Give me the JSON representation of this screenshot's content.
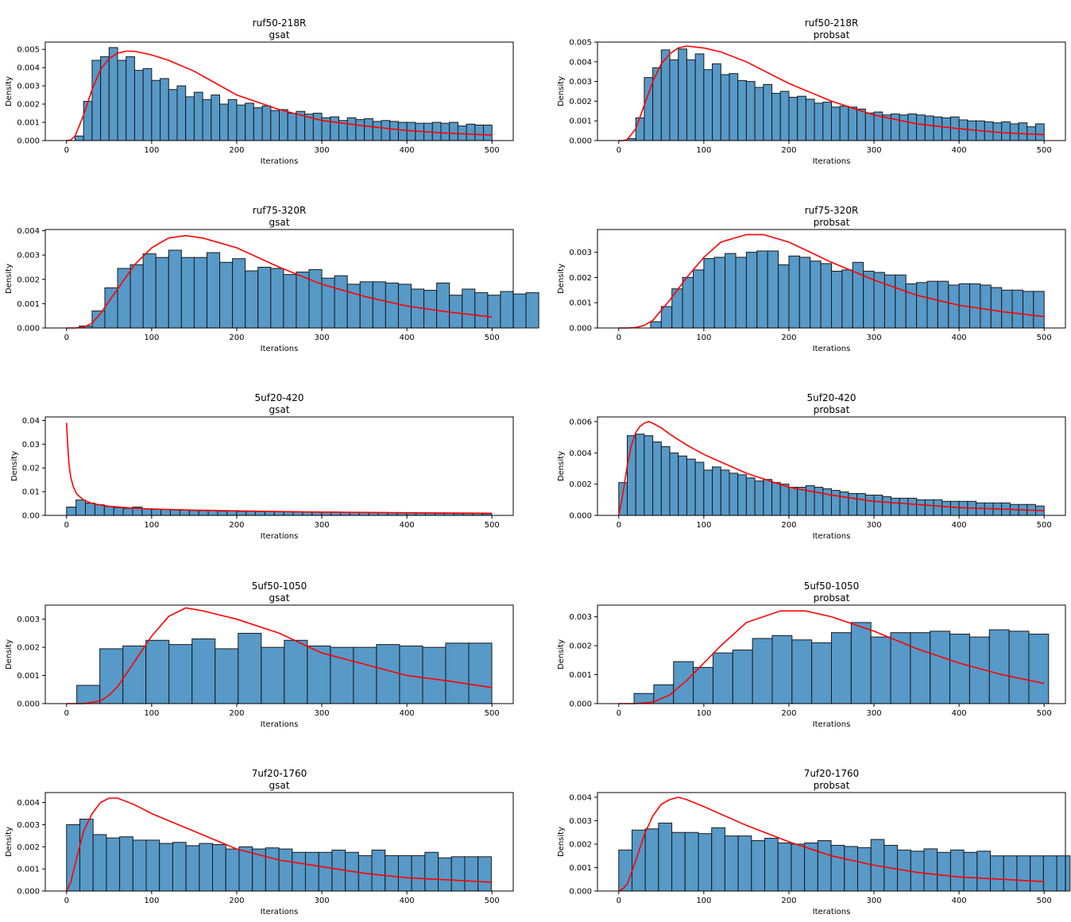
{
  "chart_data": [
    {
      "type": "bar",
      "title": "ruf50-218R",
      "subtitle": "gsat",
      "xlabel": "Iterations",
      "ylabel": "Density",
      "xlim": [
        -25,
        525
      ],
      "ylim": [
        0,
        0.0054
      ],
      "xticks": [
        0,
        100,
        200,
        300,
        400,
        500
      ],
      "yticks": [
        0.0,
        0.001,
        0.002,
        0.003,
        0.004,
        0.005
      ],
      "ytick_labels": [
        "0.000",
        "0.001",
        "0.002",
        "0.003",
        "0.004",
        "0.005"
      ],
      "bin_start": 0,
      "bin_width": 10,
      "values": [
        0,
        0.00025,
        0.00215,
        0.0044,
        0.0046,
        0.0051,
        0.0044,
        0.0046,
        0.00385,
        0.00395,
        0.0033,
        0.0034,
        0.0028,
        0.003,
        0.0024,
        0.00265,
        0.00225,
        0.0025,
        0.002,
        0.00225,
        0.00195,
        0.00205,
        0.0018,
        0.0019,
        0.00165,
        0.0017,
        0.0015,
        0.0016,
        0.00145,
        0.0015,
        0.00125,
        0.0013,
        0.0011,
        0.00125,
        0.00115,
        0.0012,
        0.00105,
        0.0011,
        0.00105,
        0.001,
        0.001,
        0.00095,
        0.00095,
        0.001,
        0.00095,
        0.001,
        0.0008,
        0.0009,
        0.00085,
        0.00085
      ],
      "fit": {
        "x": [
          0,
          5,
          10,
          20,
          30,
          40,
          50,
          60,
          70,
          80,
          100,
          120,
          150,
          200,
          250,
          300,
          350,
          400,
          450,
          500
        ],
        "y": [
          0,
          3e-05,
          0.00025,
          0.0014,
          0.0028,
          0.0039,
          0.0045,
          0.0048,
          0.0049,
          0.0049,
          0.0047,
          0.0044,
          0.0038,
          0.0025,
          0.0017,
          0.0011,
          0.0008,
          0.00055,
          0.0004,
          0.0003
        ]
      }
    },
    {
      "type": "bar",
      "title": "ruf50-218R",
      "subtitle": "probsat",
      "xlabel": "Iterations",
      "ylabel": "Density",
      "xlim": [
        -25,
        525
      ],
      "ylim": [
        0,
        0.005
      ],
      "xticks": [
        0,
        100,
        200,
        300,
        400,
        500
      ],
      "yticks": [
        0.0,
        0.001,
        0.002,
        0.003,
        0.004,
        0.005
      ],
      "ytick_labels": [
        "0.000",
        "0.001",
        "0.002",
        "0.003",
        "0.004",
        "0.005"
      ],
      "bin_start": 0,
      "bin_width": 10,
      "values": [
        0,
        0.0001,
        0.00115,
        0.0032,
        0.0037,
        0.0046,
        0.0041,
        0.00465,
        0.0041,
        0.0044,
        0.0036,
        0.0039,
        0.00335,
        0.0034,
        0.00305,
        0.003,
        0.0027,
        0.00285,
        0.0024,
        0.0025,
        0.0022,
        0.00225,
        0.0021,
        0.0019,
        0.00195,
        0.0017,
        0.00175,
        0.0017,
        0.0016,
        0.0014,
        0.00145,
        0.0013,
        0.00135,
        0.0013,
        0.00135,
        0.0013,
        0.00125,
        0.0012,
        0.00115,
        0.0012,
        0.00105,
        0.001,
        0.001,
        0.00095,
        0.0009,
        0.00095,
        0.00085,
        0.0009,
        0.0007,
        0.00085
      ],
      "fit": {
        "x": [
          0,
          5,
          10,
          20,
          30,
          40,
          50,
          60,
          70,
          80,
          100,
          120,
          150,
          200,
          250,
          300,
          350,
          400,
          450,
          500
        ],
        "y": [
          0,
          0,
          5e-05,
          0.0006,
          0.0018,
          0.003,
          0.0039,
          0.0044,
          0.0047,
          0.0048,
          0.0047,
          0.0045,
          0.004,
          0.0029,
          0.002,
          0.0013,
          0.00085,
          0.0006,
          0.0004,
          0.0003
        ]
      }
    },
    {
      "type": "bar",
      "title": "ruf75-320R",
      "subtitle": "gsat",
      "xlabel": "Iterations",
      "ylabel": "Density",
      "xlim": [
        -25,
        525
      ],
      "ylim": [
        0,
        0.00405
      ],
      "xticks": [
        0,
        100,
        200,
        300,
        400,
        500
      ],
      "yticks": [
        0.0,
        0.001,
        0.002,
        0.003,
        0.004
      ],
      "ytick_labels": [
        "0.000",
        "0.001",
        "0.002",
        "0.003",
        "0.004"
      ],
      "bin_start": 0,
      "bin_width": 15,
      "values": [
        0,
        8e-05,
        0.0007,
        0.00165,
        0.00245,
        0.0026,
        0.00305,
        0.0029,
        0.0032,
        0.0029,
        0.0029,
        0.0031,
        0.0027,
        0.00285,
        0.00235,
        0.0025,
        0.00245,
        0.0022,
        0.0023,
        0.0024,
        0.00205,
        0.00215,
        0.0018,
        0.0019,
        0.0019,
        0.00185,
        0.0018,
        0.0016,
        0.00155,
        0.00185,
        0.00135,
        0.0016,
        0.00145,
        0.00135,
        0.0015,
        0.0014,
        0.00145
      ],
      "fit": {
        "x": [
          0,
          10,
          20,
          30,
          40,
          50,
          60,
          80,
          100,
          120,
          140,
          160,
          200,
          250,
          300,
          350,
          400,
          450,
          500
        ],
        "y": [
          0,
          0,
          3e-05,
          0.0002,
          0.0006,
          0.0011,
          0.0016,
          0.0026,
          0.0033,
          0.0037,
          0.0038,
          0.0037,
          0.0033,
          0.0025,
          0.0018,
          0.0013,
          0.0009,
          0.00065,
          0.00045
        ]
      }
    },
    {
      "type": "bar",
      "title": "ruf75-320R",
      "subtitle": "probsat",
      "xlabel": "Iterations",
      "ylabel": "Density",
      "xlim": [
        -25,
        525
      ],
      "ylim": [
        0,
        0.0039
      ],
      "xticks": [
        0,
        100,
        200,
        300,
        400,
        500
      ],
      "yticks": [
        0.0,
        0.001,
        0.002,
        0.003
      ],
      "ytick_labels": [
        "0.000",
        "0.001",
        "0.002",
        "0.003"
      ],
      "bin_start": 0,
      "bin_width": 12.5,
      "values": [
        0,
        0,
        0,
        0.00025,
        0.00085,
        0.00155,
        0.002,
        0.0023,
        0.00275,
        0.0028,
        0.00295,
        0.0028,
        0.003,
        0.00305,
        0.00305,
        0.0025,
        0.00285,
        0.0028,
        0.00265,
        0.00255,
        0.00225,
        0.0023,
        0.0026,
        0.00225,
        0.0022,
        0.0021,
        0.0021,
        0.00175,
        0.0018,
        0.00185,
        0.00185,
        0.0017,
        0.00175,
        0.00175,
        0.0017,
        0.0016,
        0.0015,
        0.0015,
        0.00145,
        0.00145
      ],
      "fit": {
        "x": [
          0,
          10,
          20,
          30,
          40,
          50,
          60,
          80,
          100,
          120,
          150,
          170,
          200,
          250,
          300,
          350,
          400,
          450,
          500
        ],
        "y": [
          0,
          0,
          2e-05,
          0.0001,
          0.0003,
          0.0007,
          0.0011,
          0.002,
          0.0028,
          0.0034,
          0.0037,
          0.0037,
          0.0034,
          0.0026,
          0.0019,
          0.0013,
          0.0009,
          0.00065,
          0.00045
        ]
      }
    },
    {
      "type": "bar",
      "title": "5uf20-420",
      "subtitle": "gsat",
      "xlabel": "Iterations",
      "ylabel": "Density",
      "xlim": [
        -25,
        525
      ],
      "ylim": [
        0,
        0.0415
      ],
      "xticks": [
        0,
        100,
        200,
        300,
        400,
        500
      ],
      "yticks": [
        0.0,
        0.01,
        0.02,
        0.03,
        0.04
      ],
      "ytick_labels": [
        "0.00",
        "0.01",
        "0.02",
        "0.03",
        "0.04"
      ],
      "bin_start": 0,
      "bin_width": 11.1,
      "values": [
        0.0035,
        0.0065,
        0.0052,
        0.0045,
        0.0038,
        0.0033,
        0.003,
        0.0035,
        0.0028,
        0.0026,
        0.0025,
        0.0023,
        0.0022,
        0.0021,
        0.002,
        0.0022,
        0.0018,
        0.002,
        0.0017,
        0.0018,
        0.0016,
        0.0017,
        0.0016,
        0.0016,
        0.0015,
        0.0015,
        0.0014,
        0.0014,
        0.0014,
        0.0013,
        0.0013,
        0.0012,
        0.0012,
        0.0012,
        0.0011,
        0.0011,
        0.001,
        0.001,
        0.001,
        0.0009,
        0.0009,
        0.0008,
        0.0008,
        0.0008,
        0.0007
      ],
      "fit": {
        "x": [
          0,
          1,
          2,
          3,
          5,
          8,
          12,
          20,
          30,
          50,
          80,
          100,
          150,
          200,
          250,
          300,
          400,
          500
        ],
        "y": [
          0.039,
          0.032,
          0.026,
          0.021,
          0.016,
          0.012,
          0.009,
          0.0065,
          0.005,
          0.0038,
          0.003,
          0.0027,
          0.0022,
          0.0019,
          0.0016,
          0.0014,
          0.0011,
          0.0009
        ]
      }
    },
    {
      "type": "bar",
      "title": "5uf20-420",
      "subtitle": "probsat",
      "xlabel": "Iterations",
      "ylabel": "Density",
      "xlim": [
        -25,
        525
      ],
      "ylim": [
        0,
        0.0063
      ],
      "xticks": [
        0,
        100,
        200,
        300,
        400,
        500
      ],
      "yticks": [
        0.0,
        0.002,
        0.004,
        0.006
      ],
      "ytick_labels": [
        "0.000",
        "0.002",
        "0.004",
        "0.006"
      ],
      "bin_start": 0,
      "bin_width": 10,
      "values": [
        0.0021,
        0.0051,
        0.0052,
        0.0051,
        0.0047,
        0.0044,
        0.004,
        0.0038,
        0.0036,
        0.0034,
        0.0029,
        0.0031,
        0.0029,
        0.0027,
        0.0026,
        0.0024,
        0.0022,
        0.0023,
        0.0021,
        0.002,
        0.0018,
        0.0018,
        0.0019,
        0.0018,
        0.0017,
        0.0016,
        0.0015,
        0.0014,
        0.0014,
        0.0013,
        0.0013,
        0.0012,
        0.0011,
        0.0011,
        0.0011,
        0.001,
        0.001,
        0.001,
        0.0009,
        0.0009,
        0.0009,
        0.0009,
        0.0008,
        0.0008,
        0.0008,
        0.0008,
        0.0007,
        0.0007,
        0.0007,
        0.0006
      ],
      "fit": {
        "x": [
          0,
          5,
          10,
          15,
          20,
          25,
          30,
          35,
          40,
          50,
          60,
          80,
          100,
          150,
          200,
          250,
          300,
          350,
          400,
          450,
          500
        ],
        "y": [
          0,
          0.0014,
          0.0032,
          0.0045,
          0.0053,
          0.0057,
          0.0059,
          0.006,
          0.0059,
          0.0056,
          0.0052,
          0.0045,
          0.0039,
          0.0027,
          0.0018,
          0.0013,
          0.0009,
          0.0007,
          0.0005,
          0.0004,
          0.0003
        ]
      }
    },
    {
      "type": "bar",
      "title": "5uf50-1050",
      "subtitle": "gsat",
      "xlabel": "Iterations",
      "ylabel": "Density",
      "xlim": [
        -25,
        525
      ],
      "ylim": [
        0,
        0.0035
      ],
      "xticks": [
        0,
        100,
        200,
        300,
        400,
        500
      ],
      "yticks": [
        0.0,
        0.001,
        0.002,
        0.003
      ],
      "ytick_labels": [
        "0.000",
        "0.001",
        "0.002",
        "0.003"
      ],
      "bin_start": 12,
      "bin_width": 27.1,
      "values": [
        0.00065,
        0.00195,
        0.00205,
        0.00225,
        0.0021,
        0.0023,
        0.00195,
        0.0025,
        0.002,
        0.00225,
        0.00205,
        0.002,
        0.002,
        0.0021,
        0.00205,
        0.002,
        0.00215,
        0.00215
      ],
      "fit": {
        "x": [
          0,
          20,
          40,
          50,
          60,
          80,
          100,
          120,
          140,
          160,
          200,
          250,
          300,
          350,
          400,
          450,
          500
        ],
        "y": [
          0,
          0,
          0.0001,
          0.0003,
          0.0006,
          0.0015,
          0.0024,
          0.0031,
          0.0034,
          0.0033,
          0.003,
          0.0025,
          0.0018,
          0.0014,
          0.001,
          0.0008,
          0.00057
        ]
      }
    },
    {
      "type": "bar",
      "title": "5uf50-1050",
      "subtitle": "probsat",
      "xlabel": "Iterations",
      "ylabel": "Density",
      "xlim": [
        -25,
        525
      ],
      "ylim": [
        0,
        0.0034
      ],
      "xticks": [
        0,
        100,
        200,
        300,
        400,
        500
      ],
      "yticks": [
        0.0,
        0.001,
        0.002,
        0.003
      ],
      "ytick_labels": [
        "0.000",
        "0.001",
        "0.002",
        "0.003"
      ],
      "bin_start": 18,
      "bin_width": 23.2,
      "values": [
        0.00035,
        0.00065,
        0.00145,
        0.00125,
        0.00175,
        0.00185,
        0.00225,
        0.00235,
        0.0022,
        0.0021,
        0.00245,
        0.0028,
        0.0023,
        0.00245,
        0.00245,
        0.0025,
        0.0024,
        0.0023,
        0.00255,
        0.0025,
        0.0024
      ],
      "fit": {
        "x": [
          0,
          20,
          40,
          60,
          80,
          100,
          120,
          150,
          190,
          220,
          250,
          300,
          350,
          400,
          450,
          500
        ],
        "y": [
          0,
          0,
          5e-05,
          0.0003,
          0.0008,
          0.0014,
          0.002,
          0.0028,
          0.0032,
          0.0032,
          0.003,
          0.0025,
          0.0019,
          0.0014,
          0.001,
          0.0007
        ]
      }
    },
    {
      "type": "bar",
      "title": "7uf20-1760",
      "subtitle": "gsat",
      "xlabel": "Iterations",
      "ylabel": "Density",
      "xlim": [
        -25,
        525
      ],
      "ylim": [
        0,
        0.00445
      ],
      "xticks": [
        0,
        100,
        200,
        300,
        400,
        500
      ],
      "yticks": [
        0.0,
        0.001,
        0.002,
        0.003,
        0.004
      ],
      "ytick_labels": [
        "0.000",
        "0.001",
        "0.002",
        "0.003",
        "0.004"
      ],
      "bin_start": 0,
      "bin_width": 15.6,
      "values": [
        0.003,
        0.00325,
        0.00255,
        0.0024,
        0.00245,
        0.0023,
        0.0023,
        0.00215,
        0.0022,
        0.00205,
        0.00215,
        0.0021,
        0.0019,
        0.002,
        0.0019,
        0.00195,
        0.0019,
        0.00175,
        0.00175,
        0.00175,
        0.00185,
        0.00175,
        0.0016,
        0.00185,
        0.0016,
        0.0016,
        0.0016,
        0.00175,
        0.0015,
        0.00155,
        0.00155,
        0.00155
      ],
      "fit": {
        "x": [
          0,
          5,
          10,
          20,
          30,
          40,
          50,
          60,
          80,
          100,
          150,
          200,
          250,
          300,
          350,
          400,
          450,
          500
        ],
        "y": [
          0,
          0.0004,
          0.0012,
          0.0027,
          0.0035,
          0.004,
          0.0042,
          0.0042,
          0.0039,
          0.0035,
          0.0027,
          0.0019,
          0.0014,
          0.0011,
          0.0008,
          0.0006,
          0.0005,
          0.0004
        ]
      }
    },
    {
      "type": "bar",
      "title": "7uf20-1760",
      "subtitle": "probsat",
      "xlabel": "Iterations",
      "ylabel": "Density",
      "xlim": [
        -25,
        525
      ],
      "ylim": [
        0,
        0.0042
      ],
      "xticks": [
        0,
        100,
        200,
        300,
        400,
        500
      ],
      "yticks": [
        0.0,
        0.001,
        0.002,
        0.003,
        0.004
      ],
      "ytick_labels": [
        "0.000",
        "0.001",
        "0.002",
        "0.003",
        "0.004"
      ],
      "bin_start": 0,
      "bin_width": 15.6,
      "values": [
        0.00175,
        0.0026,
        0.00265,
        0.0029,
        0.0025,
        0.0025,
        0.00245,
        0.0027,
        0.00235,
        0.00235,
        0.00215,
        0.00225,
        0.00205,
        0.002,
        0.00205,
        0.00215,
        0.00195,
        0.0019,
        0.00185,
        0.0022,
        0.00195,
        0.00175,
        0.0017,
        0.0018,
        0.00165,
        0.00175,
        0.00165,
        0.0017,
        0.0015,
        0.0015,
        0.0015,
        0.0015,
        0.0015,
        0.0015
      ],
      "fit": {
        "x": [
          0,
          5,
          10,
          20,
          30,
          40,
          50,
          60,
          70,
          80,
          100,
          150,
          200,
          250,
          300,
          350,
          400,
          450,
          500
        ],
        "y": [
          0,
          0.0001,
          0.0003,
          0.0013,
          0.0024,
          0.0032,
          0.0037,
          0.0039,
          0.004,
          0.0039,
          0.0036,
          0.0028,
          0.0021,
          0.0015,
          0.0011,
          0.0008,
          0.0006,
          0.0005,
          0.0004
        ]
      }
    }
  ]
}
